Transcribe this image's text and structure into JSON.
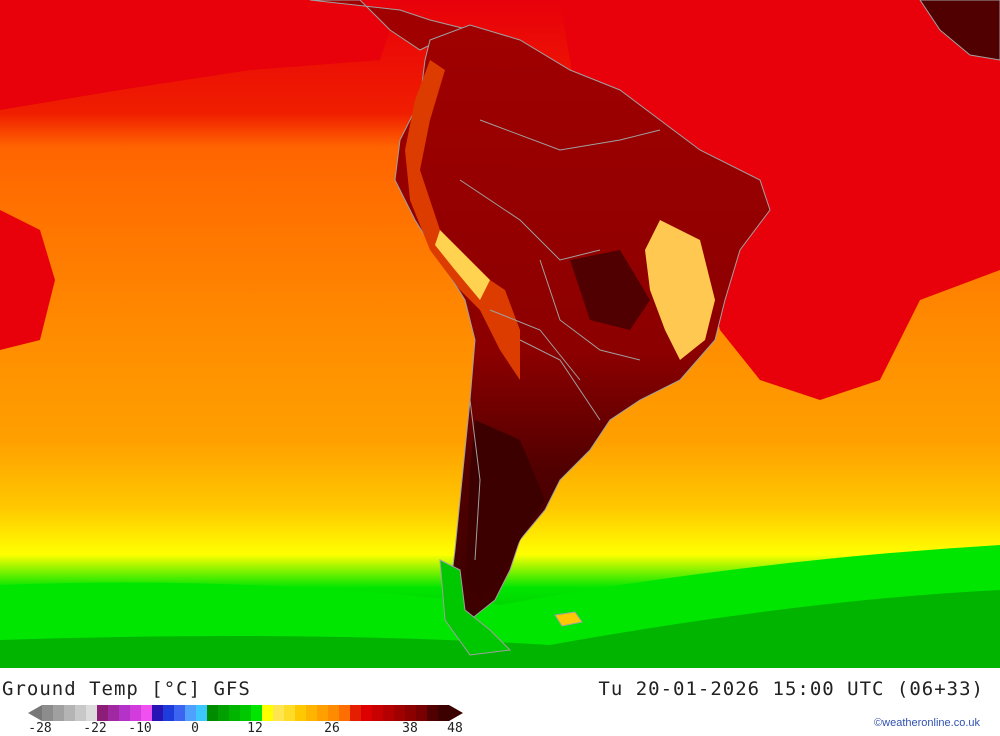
{
  "map": {
    "ocean_colors": [
      "#e8000a",
      "#ff6400",
      "#ff8c00",
      "#ffa000",
      "#ffc800",
      "#ffff00",
      "#00e600",
      "#00a000"
    ],
    "land_colors": [
      "#a00000",
      "#780000",
      "#3c0000",
      "#dc3c00",
      "#ffd250"
    ],
    "border_color": "#a0a0a0"
  },
  "footer": {
    "title_left": "Ground Temp [°C] GFS",
    "title_right": "Tu 20-01-2026 15:00 UTC (06+33)",
    "credit": "©weatheronline.co.uk"
  },
  "legend": {
    "ticks": [
      "-28",
      "-22",
      "-10",
      "0",
      "12",
      "26",
      "38",
      "48"
    ],
    "colors": [
      "#8c8c8c",
      "#a0a0a0",
      "#b4b4b4",
      "#c8c8c8",
      "#dcdcdc",
      "#8c1e78",
      "#a028a0",
      "#b432c8",
      "#d23cdc",
      "#f050f0",
      "#2814b4",
      "#1e3cdc",
      "#3c64f0",
      "#50a0ff",
      "#3cc8ff",
      "#008c00",
      "#00a000",
      "#00b400",
      "#00c800",
      "#00e600",
      "#ffff00",
      "#ffe650",
      "#ffdc28",
      "#ffc800",
      "#ffb400",
      "#ffa000",
      "#ff8c00",
      "#ff6e00",
      "#e61e00",
      "#dc0000",
      "#c80000",
      "#b40000",
      "#a00000",
      "#8c0000",
      "#780000",
      "#500000",
      "#3c0000"
    ]
  }
}
